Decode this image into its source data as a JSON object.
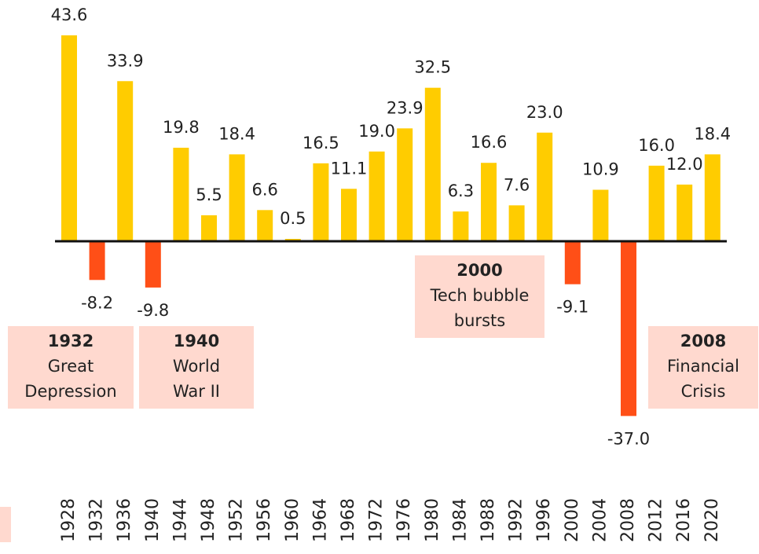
{
  "chart_data": {
    "type": "bar",
    "categories": [
      "1928",
      "1932",
      "1936",
      "1940",
      "1944",
      "1948",
      "1952",
      "1956",
      "1960",
      "1964",
      "1968",
      "1972",
      "1976",
      "1980",
      "1984",
      "1988",
      "1992",
      "1996",
      "2000",
      "2004",
      "2008",
      "2012",
      "2016",
      "2020"
    ],
    "values": [
      43.6,
      -8.2,
      33.9,
      -9.8,
      19.8,
      5.5,
      18.4,
      6.6,
      0.5,
      16.5,
      11.1,
      19.0,
      23.9,
      32.5,
      6.3,
      16.6,
      7.6,
      23.0,
      -9.1,
      10.9,
      -37.0,
      16.0,
      12.0,
      18.4
    ],
    "value_labels": [
      "43.6",
      "-8.2",
      "33.9",
      "-9.8",
      "19.8",
      "5.5",
      "18.4",
      "6.6",
      "0.5",
      "16.5",
      "11.1",
      "19.0",
      "23.9",
      "32.5",
      "6.3",
      "16.6",
      "7.6",
      "23.0",
      "-9.1",
      "10.9",
      "-37.0",
      "16.0",
      "12.0",
      "18.4"
    ],
    "color": "#ffcc00",
    "negative_color": "#ff4f17",
    "annotations": [
      {
        "title": "1932",
        "lines": [
          "Great",
          "Depression"
        ]
      },
      {
        "title": "1940",
        "lines": [
          "World",
          "War II"
        ]
      },
      {
        "title": "2000",
        "lines": [
          "Tech bubble",
          "bursts"
        ]
      },
      {
        "title": "2008",
        "lines": [
          "Financial",
          "Crisis"
        ]
      }
    ]
  }
}
